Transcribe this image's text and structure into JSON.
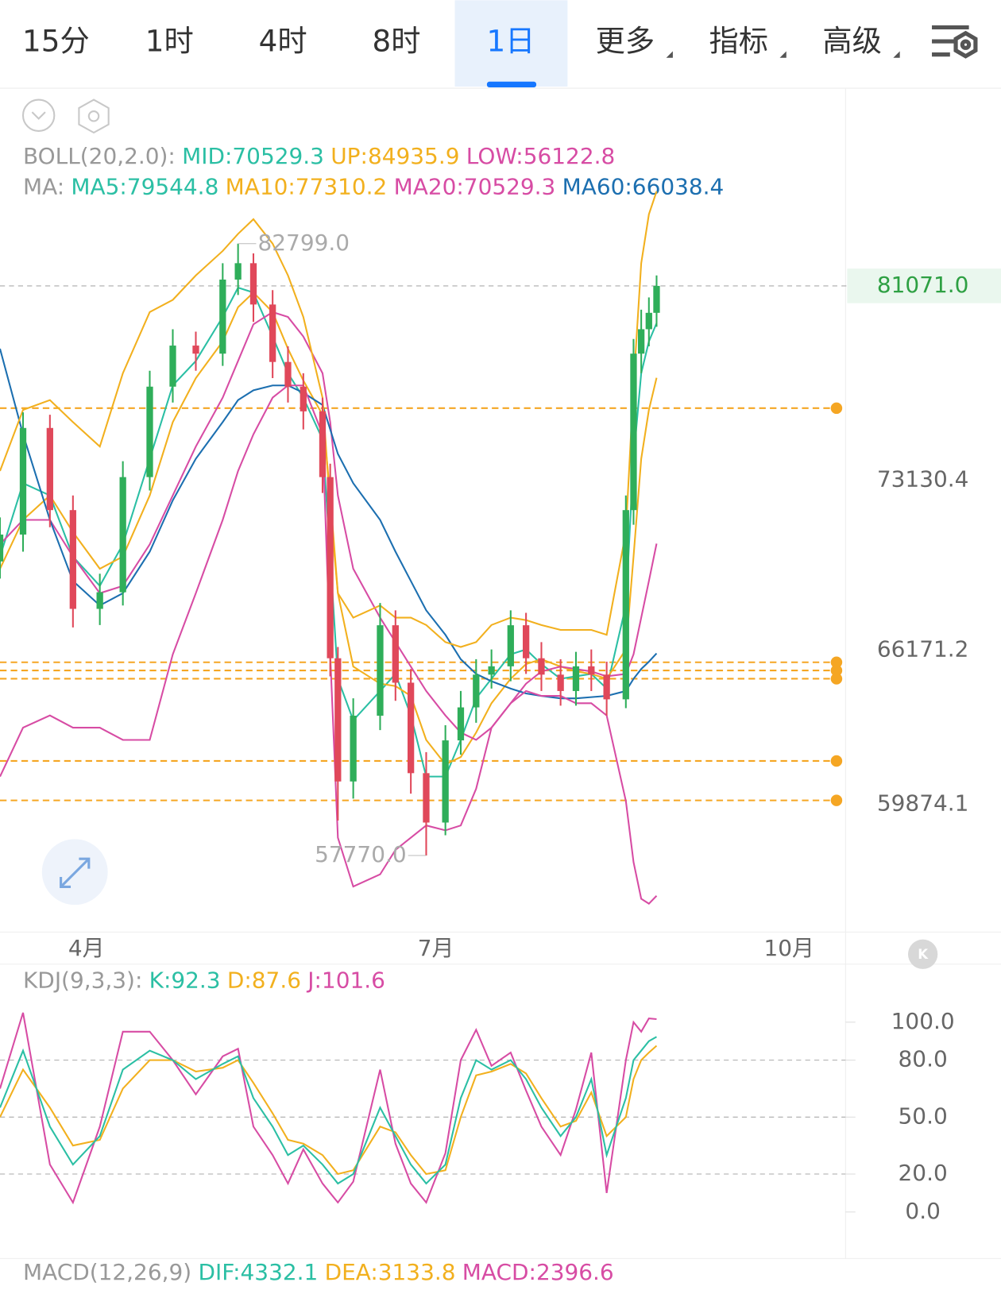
{
  "toolbar": {
    "tabs": [
      {
        "label": "15分",
        "selected": false,
        "menu": false
      },
      {
        "label": "1时",
        "selected": false,
        "menu": false
      },
      {
        "label": "4时",
        "selected": false,
        "menu": false
      },
      {
        "label": "8时",
        "selected": false,
        "menu": false
      },
      {
        "label": "1日",
        "selected": true,
        "menu": false
      },
      {
        "label": "更多",
        "selected": false,
        "menu": true
      },
      {
        "label": "指标",
        "selected": false,
        "menu": true
      },
      {
        "label": "高级",
        "selected": false,
        "menu": true
      }
    ]
  },
  "chart_data": [
    {
      "type": "candlestick",
      "boll_legend": {
        "title": "BOLL(20,2.0):",
        "items": [
          {
            "text": "MID:70529.3",
            "color": "#2bbfa4"
          },
          {
            "text": "UP:84935.9",
            "color": "#f2b01e"
          },
          {
            "text": "LOW:56122.8",
            "color": "#d74ca4"
          }
        ]
      },
      "ma_title": "MA:",
      "x": [
        0,
        6,
        13,
        19,
        26,
        32,
        39,
        45,
        51,
        58,
        62,
        66,
        71,
        75,
        79,
        84,
        86,
        88,
        92,
        99,
        103,
        107,
        111,
        116,
        120,
        124,
        128,
        133,
        137,
        141,
        146,
        150,
        154,
        158,
        163,
        165,
        167,
        169,
        171
      ],
      "open": [
        69800,
        70900,
        75260,
        71900,
        67860,
        68540,
        73250,
        76950,
        78630,
        78300,
        81330,
        82000,
        80310,
        77960,
        76950,
        75940,
        73250,
        65840,
        60800,
        63490,
        67190,
        64840,
        61140,
        59120,
        62480,
        63830,
        65170,
        65510,
        67190,
        65840,
        65170,
        64500,
        65510,
        65170,
        64160,
        71900,
        78300,
        79300,
        79970
      ],
      "high": [
        71600,
        75900,
        75800,
        72500,
        69300,
        73900,
        77600,
        79300,
        79200,
        82000,
        82799,
        82400,
        80900,
        78600,
        77500,
        76500,
        73800,
        66300,
        64200,
        68100,
        67800,
        65400,
        62000,
        63100,
        64500,
        65800,
        66200,
        67800,
        67700,
        66500,
        65800,
        66100,
        66200,
        65700,
        72500,
        78900,
        80100,
        80600,
        81500
      ],
      "low": [
        69100,
        70200,
        71200,
        67100,
        67200,
        68000,
        72700,
        76300,
        77600,
        77800,
        80700,
        79600,
        77300,
        76300,
        75200,
        72600,
        65100,
        59200,
        60100,
        62900,
        64100,
        60300,
        57770,
        58600,
        61900,
        63200,
        64600,
        64900,
        65200,
        64500,
        63900,
        63900,
        64500,
        63500,
        63800,
        71300,
        77500,
        78600,
        79400
      ],
      "close": [
        70900,
        75260,
        71900,
        67860,
        68540,
        73250,
        76950,
        78630,
        78300,
        81330,
        82000,
        80310,
        77960,
        76950,
        75940,
        73250,
        65840,
        60800,
        63490,
        67190,
        64840,
        61140,
        59120,
        62480,
        63830,
        65170,
        65510,
        67190,
        65840,
        65170,
        64500,
        65510,
        65170,
        64160,
        71900,
        78300,
        79300,
        79970,
        81071
      ],
      "up_color": "#2fae5a",
      "down_color": "#e0485a",
      "series": [
        {
          "label": "MA5:79544.8",
          "color": "#2bbfa4",
          "values": [
            70000,
            73000,
            72500,
            70000,
            68800,
            70500,
            74000,
            77000,
            78000,
            79800,
            81000,
            80800,
            79000,
            77500,
            76500,
            74800,
            70000,
            65000,
            63300,
            64500,
            65200,
            63500,
            61000,
            61000,
            62500,
            64200,
            65000,
            66000,
            66200,
            65600,
            65000,
            65100,
            65200,
            64600,
            68000,
            74000,
            77500,
            78800,
            79544.8
          ]
        },
        {
          "label": "MA10:77310.2",
          "color": "#f2b01e",
          "values": [
            69500,
            71500,
            72500,
            71000,
            69500,
            70000,
            72500,
            75500,
            77300,
            78800,
            80200,
            80800,
            80000,
            78500,
            77200,
            75800,
            72500,
            68500,
            65500,
            64800,
            64700,
            64300,
            62500,
            61500,
            61800,
            62800,
            64000,
            65000,
            65600,
            65800,
            65500,
            65300,
            65200,
            65000,
            66200,
            70000,
            74000,
            76000,
            77310.2
          ]
        },
        {
          "label": "MA20:70529.3",
          "color": "#d74ca4",
          "values": [
            70500,
            71500,
            71500,
            70000,
            68500,
            68800,
            70500,
            72500,
            74500,
            76500,
            78000,
            79500,
            80000,
            79800,
            79000,
            77500,
            75500,
            72500,
            69500,
            67500,
            66500,
            65500,
            64500,
            63500,
            62800,
            62500,
            63000,
            64000,
            64800,
            65300,
            65500,
            65400,
            65300,
            65100,
            65200,
            66000,
            67500,
            69000,
            70529.3
          ]
        },
        {
          "label": "MA60:66038.4",
          "color": "#1c6fb0",
          "values": [
            78500,
            75000,
            71500,
            69000,
            68000,
            68500,
            70200,
            72300,
            74000,
            75500,
            76400,
            76800,
            77000,
            77000,
            76700,
            76200,
            75200,
            74200,
            73000,
            71500,
            70200,
            69000,
            67800,
            66800,
            65800,
            65200,
            64900,
            64600,
            64400,
            64300,
            64200,
            64200,
            64250,
            64300,
            64500,
            65000,
            65400,
            65700,
            66038.4
          ]
        },
        {
          "color": "#f2b01e",
          "values": [
            73500,
            76000,
            76400,
            75500,
            74500,
            77500,
            80000,
            80500,
            81500,
            82500,
            83200,
            83800,
            82800,
            81500,
            79800,
            76500,
            72000,
            68500,
            67500,
            68000,
            67500,
            67500,
            67200,
            66500,
            66300,
            66500,
            67200,
            67500,
            67400,
            67200,
            67000,
            67000,
            67000,
            66800,
            71000,
            77000,
            82000,
            84000,
            84935.9
          ]
        },
        {
          "color": "#d74ca4",
          "values": [
            61000,
            63000,
            63500,
            63000,
            63000,
            62500,
            62500,
            66000,
            68500,
            71500,
            73500,
            75000,
            76500,
            77000,
            77000,
            75000,
            66000,
            58500,
            56500,
            57000,
            58000,
            58500,
            59000,
            58800,
            59000,
            60500,
            63000,
            64000,
            64500,
            64300,
            64300,
            64000,
            64000,
            63500,
            60000,
            57500,
            56000,
            55800,
            56122.8
          ]
        }
      ],
      "xlim": [
        0,
        220
      ],
      "ylim": [
        54675,
        89157
      ],
      "xticks": [
        {
          "value": 22.5,
          "label": "4月"
        },
        {
          "value": 113.5,
          "label": "7月"
        },
        {
          "value": 205.5,
          "label": "10月"
        }
      ],
      "yticks": [
        73130.4,
        66171.2,
        59874.1
      ],
      "last_price": {
        "value": 81071,
        "label": "81071.0"
      },
      "alert_lines": {
        "color": "#f5a623",
        "values": [
          76071,
          65676,
          65340,
          65003,
          61640,
          60025
        ]
      },
      "annotations": [
        {
          "x": 62,
          "value": 82799,
          "label": "82799.0"
        },
        {
          "x": 111,
          "value": 57770,
          "label": "57770.0"
        }
      ]
    },
    {
      "type": "line",
      "title": "KDJ(9,3,3):",
      "x": [
        0,
        6,
        13,
        19,
        26,
        32,
        39,
        45,
        51,
        58,
        62,
        66,
        71,
        75,
        79,
        84,
        86,
        88,
        92,
        99,
        103,
        107,
        111,
        116,
        120,
        124,
        128,
        133,
        137,
        141,
        146,
        150,
        154,
        158,
        163,
        165,
        167,
        169,
        171
      ],
      "series": [
        {
          "label": "K:92.3",
          "color": "#2bbfa4",
          "values": [
            55,
            85,
            45,
            25,
            40,
            75,
            85,
            80,
            70,
            78,
            82,
            60,
            45,
            30,
            35,
            25,
            20,
            15,
            20,
            55,
            40,
            25,
            15,
            25,
            60,
            80,
            75,
            80,
            70,
            55,
            40,
            50,
            70,
            30,
            60,
            80,
            85,
            90,
            92.3
          ]
        },
        {
          "label": "D:87.6",
          "color": "#f2b01e",
          "values": [
            50,
            75,
            55,
            35,
            38,
            65,
            80,
            80,
            74,
            76,
            80,
            68,
            52,
            38,
            36,
            30,
            25,
            20,
            22,
            45,
            42,
            30,
            20,
            22,
            50,
            72,
            74,
            78,
            73,
            60,
            45,
            48,
            63,
            40,
            50,
            70,
            80,
            84,
            87.6
          ]
        },
        {
          "label": "J:101.6",
          "color": "#d74ca4",
          "values": [
            65,
            105,
            25,
            5,
            45,
            95,
            95,
            80,
            62,
            82,
            86,
            45,
            30,
            15,
            33,
            15,
            10,
            5,
            16,
            75,
            36,
            15,
            5,
            31,
            80,
            96,
            77,
            84,
            64,
            45,
            30,
            54,
            84,
            10,
            80,
            100,
            95,
            102,
            101.6
          ]
        }
      ],
      "xlim": [
        0,
        220
      ],
      "ylim": [
        -24.5,
        130.6
      ],
      "yticks": [
        {
          "value": 100,
          "label": "100.0"
        },
        {
          "value": 80,
          "label": "80.0"
        },
        {
          "value": 50,
          "label": "50.0"
        },
        {
          "value": 20,
          "label": "20.0"
        },
        {
          "value": 0,
          "label": "0.0"
        }
      ],
      "grid_values": [
        80,
        50,
        20
      ]
    }
  ],
  "macd_legend": {
    "title": "MACD(12,26,9)",
    "items": [
      {
        "text": "DIF:4332.1",
        "color": "#2bbfa4"
      },
      {
        "text": "DEA:3133.8",
        "color": "#f2b01e"
      },
      {
        "text": "MACD:2396.6",
        "color": "#d74ca4"
      }
    ]
  }
}
